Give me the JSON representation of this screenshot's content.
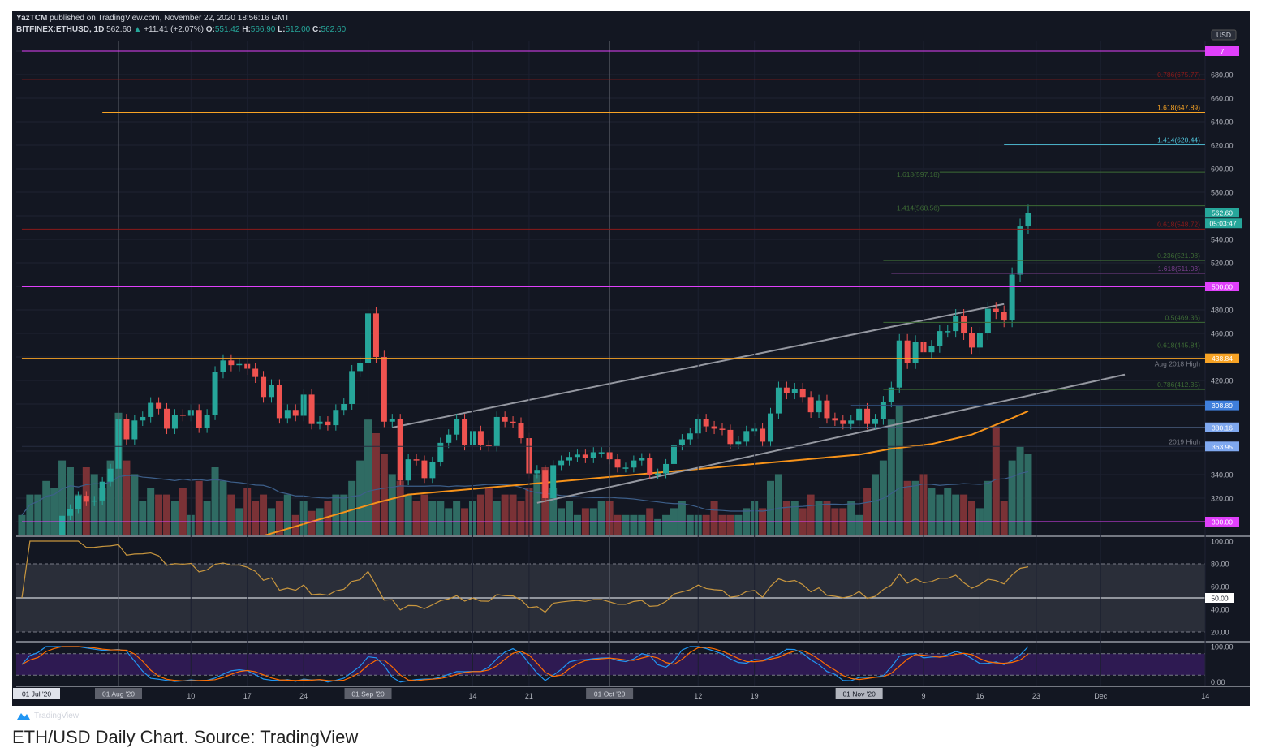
{
  "header": {
    "author": "YazTCM",
    "published": "published on TradingView.com, November 22, 2020 18:56:16 GMT",
    "symbol": "BITFINEX:ETHUSD, 1D",
    "last": "562.60",
    "change": "+11.41 (+2.07%)",
    "ohlc": {
      "o_label": "O:",
      "o": "551.42",
      "h_label": "H:",
      "h": "566.90",
      "l_label": "L:",
      "l": "512.00",
      "c_label": "C:",
      "c": "562.60"
    }
  },
  "colors": {
    "bg": "#131722",
    "up": "#26a69a",
    "down": "#ef5350",
    "magenta": "#e040fb",
    "orange": "#f7a325",
    "grid": "#1f2331"
  },
  "price_axis": {
    "currency": "USD",
    "ticks": [
      "680.00",
      "660.00",
      "640.00",
      "620.00",
      "600.00",
      "580.00",
      "540.00",
      "520.00",
      "480.00",
      "460.00",
      "420.00",
      "340.00",
      "320.00"
    ],
    "current_price": "562.60",
    "countdown": "05:03:47"
  },
  "levels": [
    {
      "price": 700,
      "color": "#e040fb",
      "label": "",
      "tag": "7",
      "from": "2020-07-20"
    },
    {
      "price": 675.77,
      "color": "#8b1a1a",
      "label": "0.786(675.77)",
      "from": "2020-07-20"
    },
    {
      "price": 647.89,
      "color": "#f7a325",
      "label": "1.618(647.89)",
      "from": "2020-07-30"
    },
    {
      "price": 620.44,
      "color": "#4fc3d9",
      "label": "1.414(620.44)",
      "from": "2020-11-19"
    },
    {
      "price": 597.18,
      "color": "#3d6b35",
      "label": "1.618(597.18)",
      "from": "2020-11-11",
      "label_side": "left"
    },
    {
      "price": 568.56,
      "color": "#3d6b35",
      "label": "1.414(568.56)",
      "from": "2020-11-11",
      "label_side": "left"
    },
    {
      "price": 548.72,
      "color": "#8b1a1a",
      "label": "0.618(548.72)",
      "from": "2020-07-20"
    },
    {
      "price": 521.98,
      "color": "#3d6b35",
      "label": "0.236(521.98)",
      "from": "2020-11-04"
    },
    {
      "price": 511.03,
      "color": "#7b3f8f",
      "label": "1.618(511.03)",
      "from": "2020-11-05"
    },
    {
      "price": 500,
      "color": "#e040fb",
      "label": "",
      "tag": "500.00",
      "from": "2020-07-20",
      "bold": true
    },
    {
      "price": 469.36,
      "color": "#3d6b35",
      "label": "0.5(469.36)",
      "from": "2020-11-04"
    },
    {
      "price": 445.84,
      "color": "#3d6b35",
      "label": "0.618(445.84)",
      "from": "2020-11-04"
    },
    {
      "price": 438.84,
      "color": "#f7a325",
      "label": "Aug 2018 High",
      "tag": "438.84",
      "from": "2020-07-20",
      "label_color": "#787b86"
    },
    {
      "price": 412.35,
      "color": "#3d6b35",
      "label": "0.786(412.35)",
      "from": "2020-11-04"
    },
    {
      "price": 398.89,
      "color": "#2f4d7a",
      "label": "",
      "tag": "398.89",
      "tag_color": "#3f7fdc",
      "from": "2020-10-31"
    },
    {
      "price": 380.16,
      "color": "#4a5f80",
      "label": "",
      "tag": "380.16",
      "tag_color": "#7fa8ef",
      "from": "2020-10-27"
    },
    {
      "price": 363.95,
      "color": "#262d3f",
      "label": "2019 High",
      "tag": "363.95",
      "tag_color": "#7fa8ef",
      "from": "2020-07-20",
      "label_color": "#787b86"
    },
    {
      "price": 300,
      "color": "#e040fb",
      "label": "",
      "tag": "300.00",
      "from": "2020-07-20"
    }
  ],
  "trendlines": [
    {
      "color": "#9598a1",
      "points": [
        [
          "2020-09-04",
          380
        ],
        [
          "2020-11-19",
          485
        ]
      ]
    },
    {
      "color": "#9598a1",
      "points": [
        [
          "2020-09-22",
          316
        ],
        [
          "2020-12-04",
          425
        ]
      ]
    }
  ],
  "moving_average": {
    "color": "#f7931a",
    "points": [
      [
        "2020-08-19",
        288
      ],
      [
        "2020-09-02",
        316
      ],
      [
        "2020-09-06",
        323
      ],
      [
        "2020-10-01",
        338
      ],
      [
        "2020-11-01",
        357
      ],
      [
        "2020-11-05",
        362
      ],
      [
        "2020-11-10",
        366
      ],
      [
        "2020-11-15",
        374
      ],
      [
        "2020-11-20",
        388
      ],
      [
        "2020-11-22",
        394
      ]
    ]
  },
  "time_axis": [
    {
      "date": "2020-07-21",
      "label": "01 Jul '20",
      "style": "white"
    },
    {
      "date": "2020-08-01",
      "label": "01 Aug '20",
      "style": "gray"
    },
    {
      "date": "2020-08-10",
      "label": "10"
    },
    {
      "date": "2020-08-17",
      "label": "17"
    },
    {
      "date": "2020-08-24",
      "label": "24"
    },
    {
      "date": "2020-09-01",
      "label": "01 Sep '20",
      "style": "gray"
    },
    {
      "date": "2020-09-14",
      "label": "14"
    },
    {
      "date": "2020-09-21",
      "label": "21"
    },
    {
      "date": "2020-10-01",
      "label": "01 Oct '20",
      "style": "gray"
    },
    {
      "date": "2020-10-12",
      "label": "12"
    },
    {
      "date": "2020-10-19",
      "label": "19"
    },
    {
      "date": "2020-11-01",
      "label": "01 Nov '20",
      "style": "light"
    },
    {
      "date": "2020-11-09",
      "label": "9"
    },
    {
      "date": "2020-11-16",
      "label": "16"
    },
    {
      "date": "2020-11-23",
      "label": "23"
    },
    {
      "date": "2020-12-01",
      "label": "Dec"
    },
    {
      "date": "2020-12-14",
      "label": "14"
    }
  ],
  "rsi": {
    "ticks": [
      "100.00",
      "80.00",
      "60.00",
      "40.00",
      "20.00"
    ],
    "mid_tag": "50.00",
    "line_color": "#c8963e"
  },
  "stoch_rsi": {
    "ticks": [
      "100.00",
      "0.00"
    ],
    "k_color": "#2196f3",
    "d_color": "#ff6d00"
  },
  "branding": "TradingView",
  "caption": "ETH/USD Daily Chart. Source: TradingView",
  "chart_data": {
    "type": "candlestick",
    "start_date": "2020-07-20",
    "closes": [
      236,
      245,
      263,
      275,
      279,
      305,
      311,
      322,
      317,
      318,
      334,
      345,
      387,
      370,
      386,
      389,
      401,
      396,
      379,
      391,
      390,
      395,
      380,
      391,
      427,
      437,
      433,
      434,
      430,
      423,
      406,
      416,
      388,
      395,
      390,
      408,
      383,
      385,
      382,
      395,
      400,
      428,
      435,
      477,
      440,
      385,
      387,
      335,
      353,
      352,
      337,
      351,
      367,
      374,
      387,
      365,
      377,
      365,
      364,
      389,
      385,
      384,
      371,
      341,
      344,
      320,
      348,
      352,
      355,
      357,
      354,
      359,
      359,
      353,
      346,
      346,
      352,
      354,
      340,
      341,
      349,
      365,
      370,
      375,
      387,
      381,
      379,
      378,
      366,
      368,
      377,
      379,
      368,
      392,
      414,
      409,
      413,
      406,
      393,
      403,
      388,
      386,
      383,
      386,
      396,
      383,
      387,
      402,
      414,
      454,
      435,
      453,
      444,
      449,
      462,
      462,
      475,
      460,
      448,
      460,
      481,
      478,
      471,
      510,
      551,
      562.6
    ],
    "volume": [
      15,
      30,
      30,
      40,
      35,
      55,
      50,
      30,
      50,
      45,
      35,
      55,
      90,
      55,
      45,
      25,
      35,
      30,
      30,
      25,
      35,
      15,
      40,
      25,
      50,
      40,
      30,
      20,
      35,
      25,
      30,
      20,
      25,
      30,
      15,
      25,
      18,
      20,
      25,
      30,
      30,
      40,
      55,
      85,
      75,
      60,
      45,
      40,
      30,
      25,
      30,
      25,
      25,
      20,
      25,
      20,
      25,
      30,
      35,
      25,
      30,
      30,
      25,
      35,
      45,
      50,
      35,
      20,
      25,
      15,
      20,
      20,
      25,
      25,
      15,
      15,
      15,
      15,
      20,
      12,
      15,
      20,
      25,
      15,
      15,
      15,
      25,
      15,
      15,
      15,
      20,
      25,
      20,
      40,
      45,
      25,
      25,
      20,
      30,
      25,
      25,
      20,
      20,
      25,
      15,
      35,
      45,
      55,
      85,
      95,
      40,
      40,
      45,
      35,
      30,
      35,
      30,
      30,
      25,
      20,
      40,
      80,
      25,
      55,
      65,
      60
    ],
    "ylim": [
      288,
      710
    ]
  }
}
